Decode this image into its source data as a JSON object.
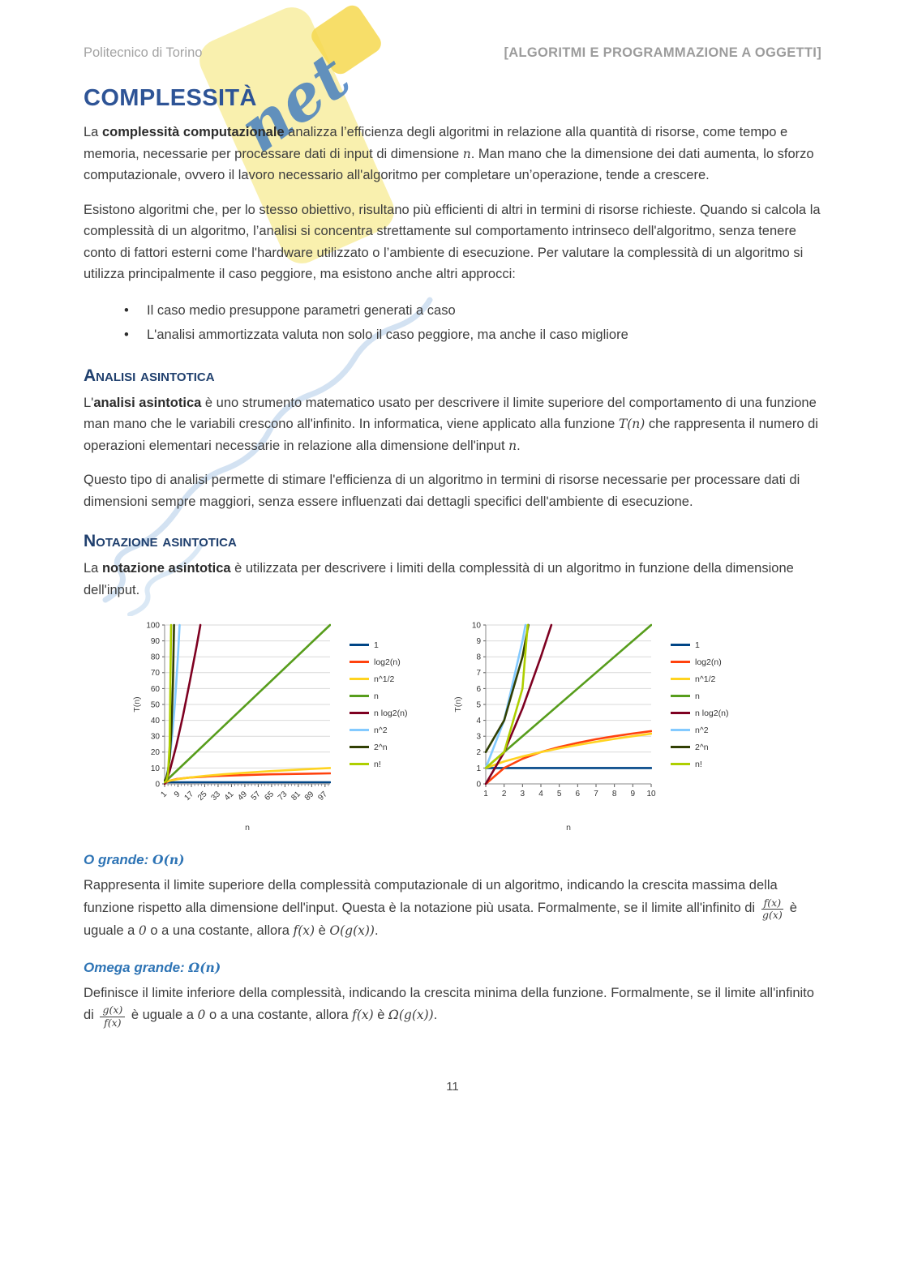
{
  "header": {
    "left": "Politecnico di Torino",
    "right": "[ALGORITMI E PROGRAMMAZIONE A OGGETTI]"
  },
  "watermark": {
    "script_text": "net",
    "flag_color": "#f9f0ae",
    "shape_color": "#6d9bd3",
    "script_color": "#3c79c0"
  },
  "page_number": "11",
  "sections": [
    {
      "type": "h1",
      "text": "COMPLESSITÀ"
    },
    {
      "type": "p",
      "segments": [
        {
          "t": "La "
        },
        {
          "t": "complessità computazionale",
          "b": true
        },
        {
          "t": " analizza l’efficienza degli algoritmi in relazione alla quantità di risorse, come tempo e memoria, necessarie per processare dati di input di dimensione "
        },
        {
          "t": "n",
          "m": true
        },
        {
          "t": ". Man mano che la dimensione dei dati aumenta, lo sforzo computazionale, ovvero il lavoro necessario all'algoritmo per completare un’operazione, tende a crescere."
        }
      ]
    },
    {
      "type": "p",
      "segments": [
        {
          "t": "Esistono algoritmi che, per lo stesso obiettivo, risultano più efficienti di altri in termini di risorse richieste. Quando si calcola la complessità di un algoritmo, l’analisi si concentra strettamente sul comportamento intrinseco dell'algoritmo, senza tenere conto di fattori esterni come l'hardware utilizzato o l’ambiente di esecuzione. Per valutare la complessità di un algoritmo si utilizza principalmente il caso peggiore, ma esistono anche altri approcci:"
        }
      ]
    },
    {
      "type": "ul",
      "items": [
        [
          {
            "t": "Il caso medio presuppone parametri generati a caso"
          }
        ],
        [
          {
            "t": "L'analisi ammortizzata valuta non solo il caso peggiore, ma anche il caso migliore"
          }
        ]
      ]
    },
    {
      "type": "h2",
      "text": "Analisi asintotica"
    },
    {
      "type": "p",
      "segments": [
        {
          "t": "L'"
        },
        {
          "t": "analisi asintotica",
          "b": true
        },
        {
          "t": " è uno strumento matematico usato per descrivere il limite superiore del comportamento di una funzione man mano che le variabili crescono all'infinito. In informatica, viene applicato alla funzione "
        },
        {
          "t": "T(n)",
          "m": true
        },
        {
          "t": " che rappresenta il numero di operazioni elementari necessarie in relazione alla dimensione dell'input "
        },
        {
          "t": "n",
          "m": true
        },
        {
          "t": "."
        }
      ]
    },
    {
      "type": "p",
      "segments": [
        {
          "t": "Questo tipo di analisi permette di stimare l'efficienza di un algoritmo in termini di risorse necessarie per processare dati di dimensioni sempre maggiori, senza essere influenzati dai dettagli specifici dell'ambiente di esecuzione."
        }
      ]
    },
    {
      "type": "h2",
      "text": "Notazione asintotica"
    },
    {
      "type": "p",
      "segments": [
        {
          "t": "La "
        },
        {
          "t": "notazione asintotica",
          "b": true
        },
        {
          "t": " è utilizzata per descrivere i limiti della complessità di un algoritmo in funzione della dimensione dell'input."
        }
      ]
    },
    {
      "type": "charts"
    },
    {
      "type": "h3",
      "segments": [
        {
          "t": "O grande: "
        },
        {
          "t": "O(n)",
          "m": true
        }
      ]
    },
    {
      "type": "p",
      "segments": [
        {
          "t": "Rappresenta il limite superiore della complessità computazionale di un algoritmo, indicando la crescita massima della funzione rispetto alla dimensione dell'input. Questa è la notazione più usata. Formalmente, se il limite all'infinito di "
        },
        {
          "frac": [
            "f(x)",
            "g(x)"
          ]
        },
        {
          "t": " è uguale a "
        },
        {
          "t": "0",
          "m": true
        },
        {
          "t": " o a una costante, allora "
        },
        {
          "t": "f(x)",
          "m": true
        },
        {
          "t": " è "
        },
        {
          "t": "O(g(x))",
          "m": true
        },
        {
          "t": "."
        }
      ]
    },
    {
      "type": "h3",
      "segments": [
        {
          "t": "Omega grande: "
        },
        {
          "t": "Ω(n)",
          "m": true
        }
      ]
    },
    {
      "type": "p",
      "segments": [
        {
          "t": "Definisce il limite inferiore della complessità, indicando la crescita minima della funzione. Formalmente, se il limite all'infinito di "
        },
        {
          "frac": [
            "g(x)",
            "f(x)"
          ]
        },
        {
          "t": " è uguale a "
        },
        {
          "t": "0",
          "m": true
        },
        {
          "t": " o a una costante, allora "
        },
        {
          "t": "f(x)",
          "m": true
        },
        {
          "t": " è "
        },
        {
          "t": "Ω(g(x))",
          "m": true
        },
        {
          "t": "."
        }
      ]
    }
  ],
  "chart_data": [
    {
      "type": "line",
      "name": "growth-functions-0-100",
      "xlabel": "n",
      "ylabel": "T(n)",
      "xlim": [
        1,
        100
      ],
      "ylim": [
        0,
        100
      ],
      "xticks": [
        1,
        9,
        17,
        25,
        33,
        41,
        49,
        57,
        65,
        73,
        81,
        89,
        97
      ],
      "yticks": [
        0,
        10,
        20,
        30,
        40,
        50,
        60,
        70,
        80,
        90,
        100
      ],
      "xtick_rotation": -45,
      "x_minor_step": 2,
      "grid": true,
      "legend_position": "right",
      "series": [
        {
          "name": "1",
          "color": "#004586",
          "points": [
            [
              1,
              1
            ],
            [
              100,
              1
            ]
          ]
        },
        {
          "name": "log2(n)",
          "color": "#ff420e",
          "points": [
            [
              1,
              0
            ],
            [
              2,
              1
            ],
            [
              4,
              2
            ],
            [
              8,
              3
            ],
            [
              16,
              4
            ],
            [
              32,
              5
            ],
            [
              64,
              6
            ],
            [
              100,
              6.64
            ]
          ]
        },
        {
          "name": "n^1/2",
          "color": "#ffd320",
          "points": [
            [
              1,
              1
            ],
            [
              4,
              2
            ],
            [
              9,
              3
            ],
            [
              16,
              4
            ],
            [
              25,
              5
            ],
            [
              36,
              6
            ],
            [
              49,
              7
            ],
            [
              64,
              8
            ],
            [
              81,
              9
            ],
            [
              100,
              10
            ]
          ]
        },
        {
          "name": "n",
          "color": "#579d1c",
          "points": [
            [
              1,
              1
            ],
            [
              100,
              100
            ]
          ]
        },
        {
          "name": "n log2(n)",
          "color": "#7e0021",
          "points": [
            [
              1,
              0
            ],
            [
              2,
              2
            ],
            [
              4,
              8
            ],
            [
              8,
              24
            ],
            [
              12,
              43
            ],
            [
              16,
              64
            ],
            [
              20,
              86
            ],
            [
              22.4,
              100
            ]
          ]
        },
        {
          "name": "n^2",
          "color": "#83caff",
          "points": [
            [
              1,
              1
            ],
            [
              2,
              4
            ],
            [
              3,
              9
            ],
            [
              4,
              16
            ],
            [
              5,
              25
            ],
            [
              6,
              36
            ],
            [
              7,
              49
            ],
            [
              8,
              64
            ],
            [
              9,
              81
            ],
            [
              10,
              100
            ]
          ]
        },
        {
          "name": "2^n",
          "color": "#314004",
          "points": [
            [
              1,
              2
            ],
            [
              2,
              4
            ],
            [
              3,
              8
            ],
            [
              4,
              16
            ],
            [
              5,
              32
            ],
            [
              6,
              64
            ],
            [
              6.64,
              100
            ]
          ]
        },
        {
          "name": "n!",
          "color": "#aecf00",
          "points": [
            [
              1,
              1
            ],
            [
              2,
              2
            ],
            [
              3,
              6
            ],
            [
              4,
              24
            ],
            [
              4.9,
              100
            ]
          ]
        }
      ]
    },
    {
      "type": "line",
      "name": "growth-functions-0-10",
      "xlabel": "n",
      "ylabel": "T(n)",
      "xlim": [
        1,
        10
      ],
      "ylim": [
        0,
        10
      ],
      "xticks": [
        1,
        2,
        3,
        4,
        5,
        6,
        7,
        8,
        9,
        10
      ],
      "yticks": [
        0,
        1,
        2,
        3,
        4,
        5,
        6,
        7,
        8,
        9,
        10
      ],
      "xtick_rotation": 0,
      "grid": true,
      "legend_position": "right",
      "series": [
        {
          "name": "1",
          "color": "#004586",
          "points": [
            [
              1,
              1
            ],
            [
              10,
              1
            ]
          ]
        },
        {
          "name": "log2(n)",
          "color": "#ff420e",
          "points": [
            [
              1,
              0
            ],
            [
              2,
              1
            ],
            [
              3,
              1.58
            ],
            [
              4,
              2
            ],
            [
              5,
              2.32
            ],
            [
              6,
              2.58
            ],
            [
              7,
              2.81
            ],
            [
              8,
              3
            ],
            [
              9,
              3.17
            ],
            [
              10,
              3.32
            ]
          ]
        },
        {
          "name": "n^1/2",
          "color": "#ffd320",
          "points": [
            [
              1,
              1
            ],
            [
              2,
              1.41
            ],
            [
              3,
              1.73
            ],
            [
              4,
              2
            ],
            [
              5,
              2.24
            ],
            [
              6,
              2.45
            ],
            [
              7,
              2.65
            ],
            [
              8,
              2.83
            ],
            [
              9,
              3
            ],
            [
              10,
              3.16
            ]
          ]
        },
        {
          "name": "n",
          "color": "#579d1c",
          "points": [
            [
              1,
              1
            ],
            [
              10,
              10
            ]
          ]
        },
        {
          "name": "n log2(n)",
          "color": "#7e0021",
          "points": [
            [
              1,
              0
            ],
            [
              2,
              2
            ],
            [
              3,
              4.75
            ],
            [
              4,
              8
            ],
            [
              4.57,
              10
            ]
          ]
        },
        {
          "name": "n^2",
          "color": "#83caff",
          "points": [
            [
              1,
              1
            ],
            [
              2,
              4
            ],
            [
              3,
              9
            ],
            [
              3.16,
              10
            ]
          ]
        },
        {
          "name": "2^n",
          "color": "#314004",
          "points": [
            [
              1,
              2
            ],
            [
              2,
              4
            ],
            [
              3,
              8
            ],
            [
              3.32,
              10
            ]
          ]
        },
        {
          "name": "n!",
          "color": "#aecf00",
          "points": [
            [
              1,
              1
            ],
            [
              2,
              2
            ],
            [
              3,
              6
            ],
            [
              3.28,
              10
            ]
          ]
        }
      ]
    }
  ]
}
